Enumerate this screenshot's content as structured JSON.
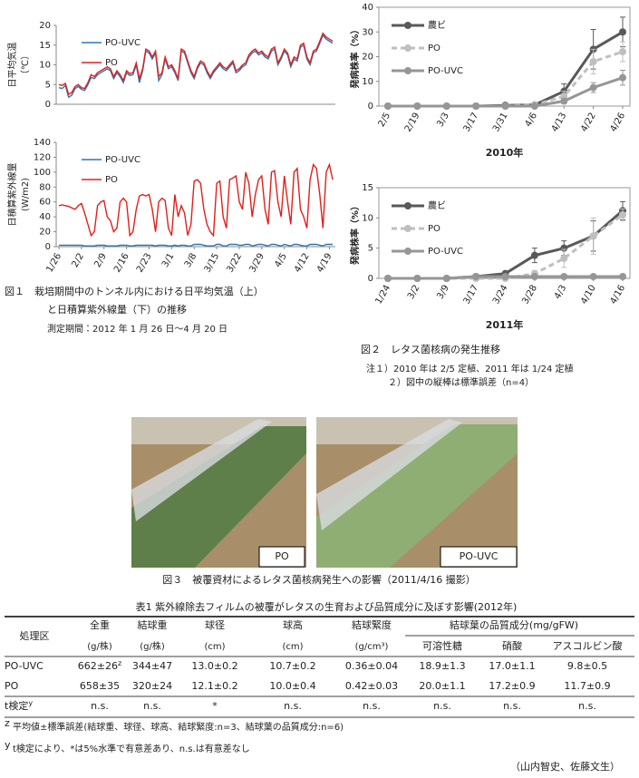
{
  "figure1": {
    "categories": [
      "1/26",
      null,
      null,
      null,
      null,
      null,
      null,
      "2/2",
      null,
      null,
      null,
      null,
      null,
      null,
      "2/9",
      null,
      null,
      null,
      null,
      null,
      null,
      "2/16",
      null,
      null,
      null,
      null,
      null,
      null,
      "2/23",
      null,
      null,
      null,
      null,
      null,
      null,
      "3/1",
      null,
      null,
      null,
      null,
      null,
      null,
      "3/8",
      null,
      null,
      null,
      null,
      null,
      null,
      "3/15",
      null,
      null,
      null,
      null,
      null,
      null,
      "3/22",
      null,
      null,
      null,
      null,
      null,
      null,
      "3/29",
      null,
      null,
      null,
      null,
      null,
      null,
      "4/5",
      null,
      null,
      null,
      null,
      null,
      null,
      "4/12",
      null,
      null,
      null,
      null,
      null,
      null,
      "4/19",
      null
    ],
    "charts": [
      {
        "type": "line",
        "ylabel": [
          "日平均気温",
          "（℃）"
        ],
        "ylim": [
          0,
          20
        ],
        "yticks": [
          0,
          5,
          10,
          15,
          20
        ],
        "legend": "upper left",
        "series": [
          {
            "name": "PO-UVC",
            "color": "#2e75b6",
            "values": [
              4.2,
              4.0,
              4.8,
              1.8,
              2.3,
              4.0,
              4.5,
              3.8,
              3.5,
              5.0,
              6.8,
              6.5,
              7.5,
              8.0,
              8.5,
              9.0,
              8.5,
              6.5,
              8.0,
              7.0,
              5.5,
              8.0,
              7.3,
              7.5,
              10.0,
              5.5,
              8.5,
              13.5,
              13.0,
              11.5,
              13.0,
              6.0,
              7.5,
              11.5,
              9.0,
              9.5,
              8.0,
              6.0,
              13.5,
              13.0,
              10.5,
              8.0,
              6.5,
              9.0,
              10.5,
              10.0,
              8.0,
              6.5,
              8.0,
              9.0,
              10.0,
              9.0,
              8.5,
              9.5,
              10.5,
              8.0,
              8.5,
              9.5,
              10.0,
              12.0,
              13.0,
              13.5,
              12.5,
              13.0,
              12.0,
              11.5,
              13.5,
              14.0,
              10.0,
              11.5,
              13.5,
              12.5,
              9.5,
              11.5,
              11.0,
              14.5,
              15.0,
              11.5,
              10.0,
              13.0,
              13.5,
              15.5,
              17.5,
              16.5,
              16.0,
              15.5
            ]
          },
          {
            "name": "PO",
            "color": "#e0201b",
            "values": [
              5.0,
              4.8,
              5.3,
              2.5,
              3.0,
              4.5,
              5.0,
              4.2,
              4.0,
              5.5,
              7.5,
              7.0,
              8.0,
              8.5,
              9.0,
              9.5,
              9.0,
              7.0,
              8.5,
              7.5,
              6.0,
              8.5,
              7.8,
              8.0,
              10.5,
              6.5,
              9.0,
              14.0,
              13.5,
              12.0,
              13.5,
              7.0,
              8.0,
              12.0,
              9.5,
              10.0,
              8.5,
              6.5,
              14.0,
              13.5,
              11.0,
              8.5,
              7.0,
              9.5,
              11.0,
              10.5,
              8.5,
              7.0,
              8.5,
              9.5,
              10.5,
              9.5,
              9.0,
              10.0,
              11.0,
              8.5,
              9.0,
              10.0,
              10.5,
              12.5,
              13.5,
              14.0,
              13.0,
              13.5,
              12.5,
              12.0,
              14.0,
              14.5,
              10.5,
              12.0,
              14.0,
              13.0,
              10.0,
              12.0,
              11.5,
              15.0,
              15.5,
              12.0,
              10.5,
              13.5,
              14.0,
              16.0,
              18.0,
              17.0,
              16.5,
              16.0
            ]
          }
        ]
      },
      {
        "type": "line",
        "ylabel": [
          "日積算紫外線量",
          "(W/m2)"
        ],
        "ylim": [
          0,
          140
        ],
        "yticks": [
          0,
          20,
          40,
          60,
          80,
          100,
          120,
          140
        ],
        "legend": "upper left",
        "series": [
          {
            "name": "PO-UVC",
            "color": "#2e75b6",
            "values": [
              2,
              2,
              2,
              2,
              2,
              2,
              2,
              2,
              1,
              1,
              1,
              1,
              2,
              2,
              2,
              1,
              1,
              1,
              1,
              2,
              2,
              2,
              1,
              1,
              2,
              2,
              2,
              2,
              2,
              2,
              1,
              2,
              2,
              2,
              1,
              1,
              2,
              1,
              2,
              2,
              1,
              1,
              3,
              3,
              3,
              2,
              1,
              1,
              1,
              3,
              3,
              1,
              1,
              3,
              3,
              3,
              2,
              2,
              3,
              3,
              1,
              2,
              3,
              3,
              2,
              1,
              3,
              3,
              2,
              1,
              3,
              2,
              1,
              3,
              3,
              2,
              1,
              1,
              3,
              3,
              3,
              2,
              1,
              3,
              3,
              3
            ]
          },
          {
            "name": "PO",
            "color": "#e0201b",
            "values": [
              55,
              56,
              55,
              54,
              52,
              50,
              55,
              58,
              45,
              30,
              15,
              20,
              55,
              60,
              62,
              40,
              35,
              20,
              25,
              60,
              65,
              60,
              15,
              20,
              50,
              68,
              70,
              68,
              70,
              50,
              20,
              60,
              65,
              62,
              25,
              15,
              70,
              40,
              55,
              45,
              15,
              30,
              88,
              90,
              85,
              50,
              30,
              20,
              15,
              85,
              88,
              40,
              25,
              90,
              92,
              95,
              60,
              50,
              100,
              85,
              40,
              70,
              90,
              95,
              50,
              30,
              100,
              102,
              60,
              40,
              95,
              60,
              30,
              100,
              105,
              50,
              40,
              25,
              90,
              110,
              105,
              70,
              25,
              100,
              110,
              90
            ]
          }
        ]
      }
    ],
    "caption": [
      "図１　栽培期間中のトンネル内における日平均気温（上）",
      "と日積算紫外線量（下）の推移"
    ],
    "note": "測定期間：2012 年 1 月 26 日～4 月 20 日"
  },
  "figure2": {
    "charts": [
      {
        "type": "line",
        "xlabel": "2010年",
        "ylabel": "発病株率（%）",
        "frame": true,
        "markers": true,
        "legend": "upper left",
        "categories": [
          "2/5",
          "2/19",
          "3/3",
          "3/17",
          "3/31",
          "4/6",
          "4/13",
          "4/22",
          "4/26"
        ],
        "ylim": [
          0,
          40
        ],
        "yticks": [
          0,
          10,
          20,
          30,
          40
        ],
        "series": [
          {
            "name": "農ビ",
            "color": "#595959",
            "line_style": "solid",
            "values": [
              0,
              0,
              0,
              0,
              0.3,
              0.5,
              6,
              23,
              30
            ],
            "errors": [
              null,
              null,
              null,
              null,
              null,
              null,
              3,
              8,
              6
            ]
          },
          {
            "name": "PO",
            "color": "#bfbfbf",
            "line_style": "dashed",
            "values": [
              0,
              0,
              0,
              0,
              0,
              0.5,
              4,
              18,
              22
            ],
            "errors": [
              null,
              null,
              null,
              null,
              null,
              null,
              2,
              5,
              4
            ]
          },
          {
            "name": "PO-UVC",
            "color": "#969696",
            "line_style": "solid",
            "values": [
              0,
              0,
              0,
              0,
              0,
              0,
              2,
              7.5,
              11.5
            ],
            "errors": [
              null,
              null,
              null,
              null,
              null,
              null,
              1,
              2,
              3
            ]
          }
        ]
      },
      {
        "type": "line",
        "xlabel": "2011年",
        "ylabel": "発病株率（%）",
        "frame": true,
        "markers": true,
        "legend": "upper left",
        "categories": [
          "1/24",
          "3/2",
          "3/9",
          "3/17",
          "3/24",
          "3/28",
          "4/3",
          "4/10",
          "4/16"
        ],
        "ylim": [
          0,
          15
        ],
        "yticks": [
          0,
          5,
          10,
          15
        ],
        "series": [
          {
            "name": "農ビ",
            "color": "#595959",
            "line_style": "solid",
            "values": [
              0,
              0,
              0,
              0.3,
              0.8,
              3.8,
              5,
              7,
              11.2
            ],
            "errors": [
              null,
              null,
              null,
              null,
              null,
              1.2,
              1.2,
              2.5,
              1.5
            ]
          },
          {
            "name": "PO",
            "color": "#bfbfbf",
            "line_style": "dashed",
            "values": [
              0,
              0,
              0,
              0,
              0,
              0.8,
              3.3,
              7,
              10.5
            ],
            "errors": [
              null,
              null,
              null,
              null,
              null,
              0.5,
              1.5,
              3,
              1
            ]
          },
          {
            "name": "PO-UVC",
            "color": "#969696",
            "line_style": "solid",
            "values": [
              0,
              0,
              0,
              0.3,
              0.3,
              0.3,
              0.3,
              0.3,
              0.3
            ],
            "errors": [
              null,
              null,
              null,
              null,
              null,
              null,
              null,
              null,
              null
            ]
          }
        ]
      }
    ],
    "caption": "図２　レタス菌核病の発生推移",
    "notes": [
      "注１）2010 年は 2/5 定植、2011 年は 1/24 定植",
      "２）図中の縦棒は標準誤差（n=4）"
    ]
  },
  "figure3": {
    "photos": [
      {
        "label": "PO"
      },
      {
        "label": "PO-UVC"
      }
    ],
    "caption": "図３　被覆資材によるレタス菌核病発生への影響（2011/4/16 撮影）"
  },
  "table1": {
    "title": "表1  紫外線除去フィルムの被覆がレタスの生育および品質成分に及ぼす影響(2012年)",
    "columns": [
      "処理区",
      "全重",
      "結球重",
      "球径",
      "球高",
      "結球緊度",
      "可溶性糖",
      "硝酸",
      "アスコルビン酸"
    ],
    "units": [
      "(g/株)",
      "(g/株)",
      "(cm)",
      "(cm)",
      "(g/cm³)"
    ],
    "group_header": "結球葉の品質成分(mg/gFW)",
    "rows": [
      {
        "label": "PO-UVC",
        "marker": "z",
        "cells": [
          "662±26",
          "344±47",
          "13.0±0.2",
          "10.7±0.2",
          "0.36±0.04",
          "18.9±1.3",
          "17.0±1.1",
          "9.8±0.5"
        ]
      },
      {
        "label": "PO",
        "cells": [
          "658±35",
          "320±24",
          "12.1±0.2",
          "10.0±0.4",
          "0.42±0.03",
          "20.0±1.1",
          "17.2±0.9",
          "11.7±0.9"
        ]
      },
      {
        "label": "t検定",
        "label_marker": "y",
        "cells": [
          "n.s.",
          "n.s.",
          "*",
          "n.s.",
          "n.s.",
          "n.s.",
          "n.s.",
          "n.s."
        ]
      }
    ],
    "footnotes": [
      {
        "mark": "z",
        "text": "平均値±標準誤差(結球重、球径、球高、結球緊度:n=3、結球葉の品質成分:n=6)"
      },
      {
        "mark": "y",
        "text": "t検定により、*は5%水準で有意差あり、n.s.は有意差なし"
      }
    ]
  },
  "author": "（山内智史、佐藤文生）"
}
